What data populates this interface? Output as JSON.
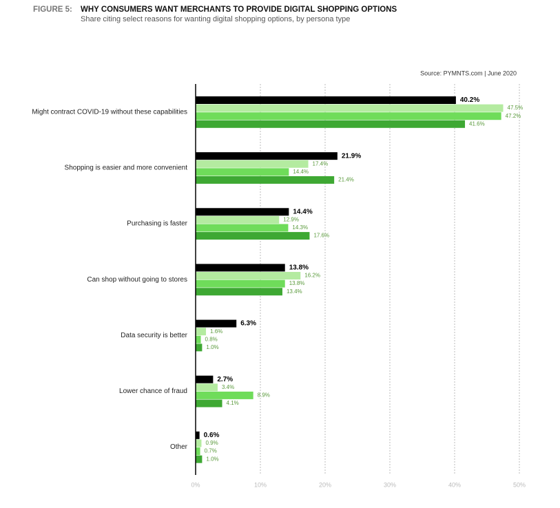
{
  "chart_data": {
    "type": "hbar",
    "figure_label": "FIGURE 5:",
    "title": "WHY CONSUMERS WANT MERCHANTS TO PROVIDE DIGITAL SHOPPING OPTIONS",
    "subtitle": "Share citing select reasons for wanting digital shopping options, by persona type",
    "source": "Source: PYMNTS.com  |  June 2020",
    "categories": [
      "Might contract COVID-19 without these capabilities",
      "Shopping is easier and more convenient",
      "Purchasing is faster",
      "Can shop without going to stores",
      "Data security is better",
      "Lower chance of fraud",
      "Other"
    ],
    "series": [
      {
        "color": "#000000",
        "values": [
          40.2,
          21.9,
          14.4,
          13.8,
          6.3,
          2.7,
          0.6
        ],
        "value_labels": [
          "40.2%",
          "21.9%",
          "14.4%",
          "13.8%",
          "6.3%",
          "2.7%",
          "0.6%"
        ]
      },
      {
        "color": "#b4eba0",
        "values": [
          47.5,
          17.4,
          12.9,
          16.2,
          1.6,
          3.4,
          0.9
        ],
        "value_labels": [
          "47.5%",
          "17.4%",
          "12.9%",
          "16.2%",
          "1.6%",
          "3.4%",
          "0.9%"
        ]
      },
      {
        "color": "#6fdc5a",
        "values": [
          47.2,
          14.4,
          14.3,
          13.8,
          0.8,
          8.9,
          0.7
        ],
        "value_labels": [
          "47.2%",
          "14.4%",
          "14.3%",
          "13.8%",
          "0.8%",
          "8.9%",
          "0.7%"
        ]
      },
      {
        "color": "#3ea833",
        "values": [
          41.6,
          21.4,
          17.6,
          13.4,
          1.0,
          4.1,
          1.0
        ],
        "value_labels": [
          "41.6%",
          "21.4%",
          "17.6%",
          "13.4%",
          "1.0%",
          "4.1%",
          "1.0%"
        ]
      }
    ],
    "xlim": [
      0,
      50
    ],
    "xticks": [
      {
        "value": 0,
        "label": "0%"
      },
      {
        "value": 10,
        "label": "10%"
      },
      {
        "value": 20,
        "label": "20%"
      },
      {
        "value": 30,
        "label": "30%"
      },
      {
        "value": 40,
        "label": "40%"
      },
      {
        "value": 50,
        "label": "50%"
      }
    ],
    "grid": true
  }
}
